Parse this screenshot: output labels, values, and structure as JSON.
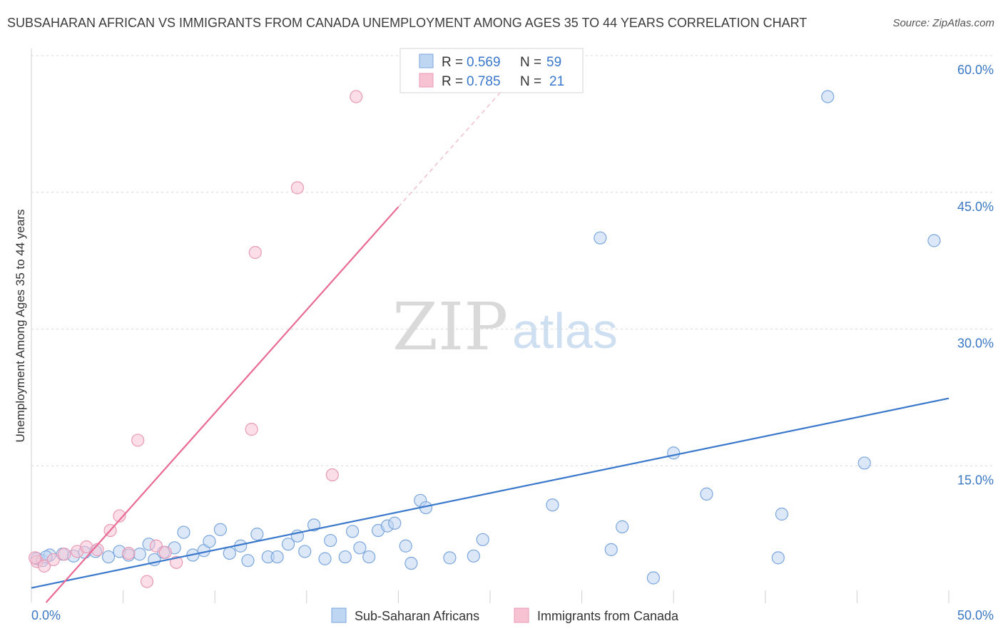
{
  "header": {
    "title": "SUBSAHARAN AFRICAN VS IMMIGRANTS FROM CANADA UNEMPLOYMENT AMONG AGES 35 TO 44 YEARS CORRELATION CHART",
    "source": "Source: ZipAtlas.com"
  },
  "watermark": {
    "zip": "ZIP",
    "atlas": "atlas"
  },
  "colors": {
    "blue": "#3a78cc",
    "blue_fill": "#bfd6f3",
    "pink": "#e96a97",
    "pink_fill": "#f7c3d3",
    "grid": "#d8d8d8",
    "tick_text": "#3b78c4"
  },
  "legend": {
    "items": [
      {
        "r_label": "R = ",
        "r_value": "0.569",
        "n_label": "N = ",
        "n_value": "59"
      },
      {
        "r_label": "R = ",
        "r_value": "0.785",
        "n_label": "N = ",
        "n_value": "21"
      }
    ]
  },
  "bottom_legend": {
    "series1": "Sub-Saharan Africans",
    "series2": "Immigrants from Canada"
  },
  "chart_data": {
    "type": "scatter",
    "title": "SUBSAHARAN AFRICAN VS IMMIGRANTS FROM CANADA UNEMPLOYMENT AMONG AGES 35 TO 44 YEARS CORRELATION CHART",
    "xlabel": "",
    "ylabel": "Unemployment Among Ages 35 to 44 years",
    "xlim": [
      0,
      50
    ],
    "ylim": [
      0,
      60
    ],
    "x_tick_labels": [
      "0.0%",
      "50.0%"
    ],
    "y_tick_labels": [
      "15.0%",
      "30.0%",
      "45.0%",
      "60.0%"
    ],
    "y_ticks": [
      15,
      30,
      45,
      60
    ],
    "series": [
      {
        "name": "Sub-Saharan Africans",
        "R": 0.569,
        "N": 59,
        "trend": {
          "x": [
            0,
            50
          ],
          "y": [
            1.6,
            22.4
          ]
        },
        "points": [
          [
            0.3,
            4.8
          ],
          [
            0.6,
            4.6
          ],
          [
            1.0,
            5.2
          ],
          [
            1.7,
            5.3
          ],
          [
            2.3,
            5.1
          ],
          [
            2.9,
            5.5
          ],
          [
            3.5,
            5.6
          ],
          [
            4.2,
            5.0
          ],
          [
            4.8,
            5.6
          ],
          [
            5.3,
            5.2
          ],
          [
            5.9,
            5.3
          ],
          [
            6.4,
            6.4
          ],
          [
            6.7,
            4.7
          ],
          [
            7.2,
            5.5
          ],
          [
            7.8,
            6.0
          ],
          [
            8.3,
            7.7
          ],
          [
            8.8,
            5.2
          ],
          [
            9.4,
            5.7
          ],
          [
            9.7,
            6.7
          ],
          [
            10.3,
            8.0
          ],
          [
            10.8,
            5.4
          ],
          [
            11.4,
            6.2
          ],
          [
            11.8,
            4.6
          ],
          [
            12.3,
            7.5
          ],
          [
            12.9,
            5.0
          ],
          [
            13.4,
            5.0
          ],
          [
            14.0,
            6.4
          ],
          [
            14.5,
            7.3
          ],
          [
            14.9,
            5.6
          ],
          [
            15.4,
            8.5
          ],
          [
            16.0,
            4.8
          ],
          [
            16.3,
            6.8
          ],
          [
            17.1,
            5.0
          ],
          [
            17.5,
            7.8
          ],
          [
            17.9,
            6.0
          ],
          [
            18.4,
            5.0
          ],
          [
            18.9,
            7.9
          ],
          [
            19.4,
            8.4
          ],
          [
            19.8,
            8.7
          ],
          [
            20.4,
            6.2
          ],
          [
            20.7,
            4.3
          ],
          [
            21.2,
            11.2
          ],
          [
            21.5,
            10.4
          ],
          [
            22.8,
            4.9
          ],
          [
            24.1,
            5.1
          ],
          [
            24.6,
            6.9
          ],
          [
            28.4,
            10.7
          ],
          [
            31.0,
            40.0
          ],
          [
            31.6,
            5.8
          ],
          [
            32.2,
            8.3
          ],
          [
            33.9,
            2.7
          ],
          [
            35.0,
            16.4
          ],
          [
            36.8,
            11.9
          ],
          [
            40.7,
            4.9
          ],
          [
            40.9,
            9.7
          ],
          [
            43.4,
            55.5
          ],
          [
            45.4,
            15.3
          ],
          [
            49.2,
            39.7
          ],
          [
            0.8,
            5.0
          ]
        ]
      },
      {
        "name": "Immigrants from Canada",
        "R": 0.785,
        "N": 21,
        "trend": {
          "x": [
            0.8,
            20.0
          ],
          "y": [
            0.0,
            43.4
          ]
        },
        "trend_dashed": {
          "x": [
            20.0,
            25.8
          ],
          "y": [
            43.4,
            56.5
          ]
        },
        "points": [
          [
            0.3,
            4.5
          ],
          [
            0.7,
            4.0
          ],
          [
            1.2,
            4.7
          ],
          [
            1.8,
            5.3
          ],
          [
            2.5,
            5.6
          ],
          [
            3.0,
            6.1
          ],
          [
            3.6,
            5.8
          ],
          [
            4.3,
            7.9
          ],
          [
            4.8,
            9.5
          ],
          [
            5.3,
            5.4
          ],
          [
            5.8,
            17.8
          ],
          [
            6.3,
            2.3
          ],
          [
            6.8,
            6.2
          ],
          [
            7.3,
            5.5
          ],
          [
            7.9,
            4.4
          ],
          [
            12.0,
            19.0
          ],
          [
            12.2,
            38.4
          ],
          [
            14.5,
            45.5
          ],
          [
            16.4,
            14.0
          ],
          [
            17.7,
            55.5
          ],
          [
            0.2,
            4.9
          ]
        ]
      }
    ]
  }
}
